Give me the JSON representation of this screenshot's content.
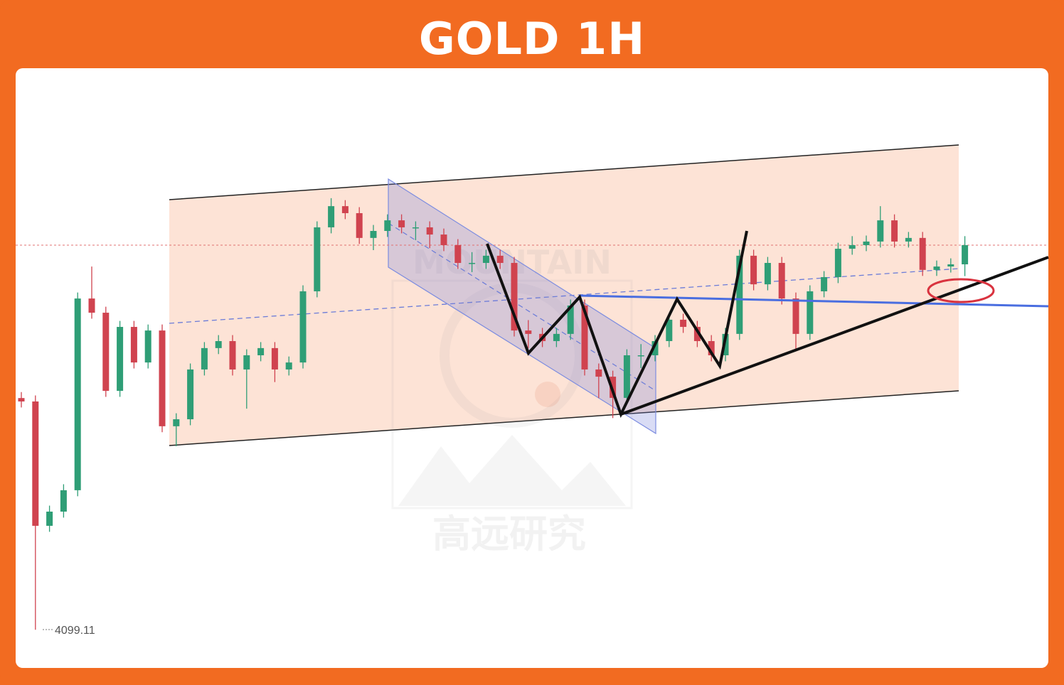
{
  "chart_data": {
    "type": "candlestick",
    "title": "GOLD 1H",
    "watermark": [
      "MOUNTAIN",
      "高远研究"
    ],
    "ylim": [
      4080,
      4380
    ],
    "up_color": "#2f9e76",
    "down_color": "#d0434f",
    "open": [
      4215.0,
      4213.3,
      4151.1,
      4158.2,
      4168.9,
      4264.8,
      4257.7,
      4218.6,
      4250.6,
      4232.8,
      4248.8,
      4200.9,
      4204.4,
      4229.3,
      4240.0,
      4243.5,
      4229.3,
      4236.4,
      4240.0,
      4229.3,
      4232.8,
      4268.4,
      4300.4,
      4311.0,
      4307.5,
      4295.1,
      4298.6,
      4303.9,
      4300.4,
      4300.4,
      4296.8,
      4291.5,
      4282.6,
      4282.6,
      4286.2,
      4282.6,
      4248.8,
      4247.1,
      4243.5,
      4247.1,
      4261.3,
      4229.3,
      4225.7,
      4215.1,
      4236.4,
      4236.4,
      4243.5,
      4254.2,
      4250.6,
      4243.5,
      4236.4,
      4247.1,
      4286.2,
      4271.9,
      4282.6,
      4264.8,
      4247.1,
      4268.4,
      4275.5,
      4289.7,
      4291.5,
      4293.3,
      4303.9,
      4293.3,
      4295.1,
      4279.1,
      4280.8,
      4281.9
    ],
    "high": [
      4218.0,
      4216.3,
      4161.2,
      4171.9,
      4267.8,
      4280.8,
      4260.7,
      4253.6,
      4253.6,
      4251.8,
      4251.8,
      4207.4,
      4232.3,
      4243.0,
      4246.5,
      4246.5,
      4239.4,
      4243.0,
      4243.0,
      4235.8,
      4271.4,
      4303.4,
      4315.0,
      4314.0,
      4310.5,
      4301.6,
      4306.9,
      4306.9,
      4303.4,
      4303.4,
      4299.8,
      4294.5,
      4288.0,
      4289.2,
      4289.2,
      4285.6,
      4254.0,
      4250.1,
      4250.1,
      4264.3,
      4264.3,
      4232.3,
      4228.7,
      4239.4,
      4242.0,
      4246.5,
      4257.2,
      4257.2,
      4253.6,
      4246.5,
      4250.1,
      4289.2,
      4289.2,
      4285.6,
      4285.6,
      4267.8,
      4271.4,
      4278.5,
      4292.7,
      4296.0,
      4296.3,
      4311.0,
      4306.9,
      4298.1,
      4298.1,
      4283.8,
      4284.9,
      4296.0
    ],
    "low": [
      4210.3,
      4099.11,
      4148.1,
      4155.2,
      4165.9,
      4254.7,
      4215.6,
      4215.6,
      4229.8,
      4229.8,
      4197.9,
      4190.9,
      4201.4,
      4226.3,
      4237.0,
      4226.3,
      4209.7,
      4233.4,
      4223.0,
      4226.3,
      4229.8,
      4265.4,
      4297.4,
      4304.5,
      4292.1,
      4289.0,
      4295.6,
      4297.4,
      4294.0,
      4290.0,
      4288.5,
      4279.6,
      4278.0,
      4279.6,
      4279.6,
      4245.8,
      4240.0,
      4240.5,
      4240.5,
      4244.1,
      4226.3,
      4215.0,
      4205.0,
      4212.1,
      4230.0,
      4233.4,
      4240.5,
      4247.6,
      4240.5,
      4233.4,
      4233.4,
      4244.1,
      4268.9,
      4268.9,
      4261.8,
      4239.0,
      4244.1,
      4265.4,
      4272.5,
      4286.7,
      4288.5,
      4290.3,
      4290.3,
      4290.3,
      4276.1,
      4276.1,
      4277.8,
      4276.0
    ],
    "close": [
      4213.3,
      4151.1,
      4158.2,
      4168.9,
      4264.8,
      4257.7,
      4218.6,
      4250.6,
      4232.8,
      4248.8,
      4200.9,
      4204.4,
      4229.3,
      4240.0,
      4243.5,
      4229.3,
      4236.4,
      4240.0,
      4229.3,
      4232.8,
      4268.4,
      4300.4,
      4311.0,
      4307.5,
      4295.1,
      4298.6,
      4303.9,
      4300.4,
      4300.4,
      4296.8,
      4291.5,
      4282.6,
      4282.6,
      4286.2,
      4282.6,
      4248.8,
      4247.1,
      4243.5,
      4247.1,
      4261.3,
      4229.3,
      4225.7,
      4215.1,
      4236.4,
      4236.4,
      4243.5,
      4254.2,
      4250.6,
      4243.5,
      4236.4,
      4247.1,
      4286.2,
      4271.9,
      4282.6,
      4264.8,
      4247.1,
      4268.4,
      4275.5,
      4289.7,
      4291.5,
      4293.3,
      4303.9,
      4293.3,
      4295.1,
      4279.1,
      4280.8,
      4281.9,
      4291.5
    ]
  }
}
